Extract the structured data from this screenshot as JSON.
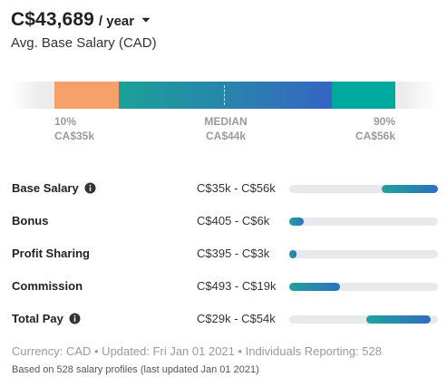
{
  "header": {
    "amount": "C$43,689",
    "period": "/ year",
    "subtitle": "Avg. Base Salary (CAD)"
  },
  "distribution": {
    "low": {
      "pct": "10%",
      "value": "CA$35k"
    },
    "median": {
      "pct": "MEDIAN",
      "value": "CA$44k"
    },
    "high": {
      "pct": "90%",
      "value": "CA$56k"
    },
    "colors": {
      "low": "#f6a06a",
      "mid_start": "#1aa19a",
      "mid_end": "#3564c4",
      "high": "#00a99d"
    }
  },
  "pay_rows": [
    {
      "label": "Base Salary",
      "range": "C$35k - C$56k",
      "info": true,
      "fill_start": 0.62,
      "fill_end": 1.0
    },
    {
      "label": "Bonus",
      "range": "C$405 - C$6k",
      "info": false,
      "fill_start": 0.0,
      "fill_end": 0.1
    },
    {
      "label": "Profit Sharing",
      "range": "C$395 - C$3k",
      "info": false,
      "fill_start": 0.0,
      "fill_end": 0.05
    },
    {
      "label": "Commission",
      "range": "C$493 - C$19k",
      "info": false,
      "fill_start": 0.0,
      "fill_end": 0.34
    },
    {
      "label": "Total Pay",
      "range": "C$29k - C$54k",
      "info": true,
      "fill_start": 0.52,
      "fill_end": 0.95
    }
  ],
  "footer": {
    "meta": "Currency: CAD • Updated: Fri Jan 01 2021 • Individuals Reporting: 528",
    "note": "Based on 528 salary profiles (last updated Jan 01 2021)"
  },
  "icons": {
    "period_toggle": "caret-down-icon",
    "info": "info-icon"
  }
}
